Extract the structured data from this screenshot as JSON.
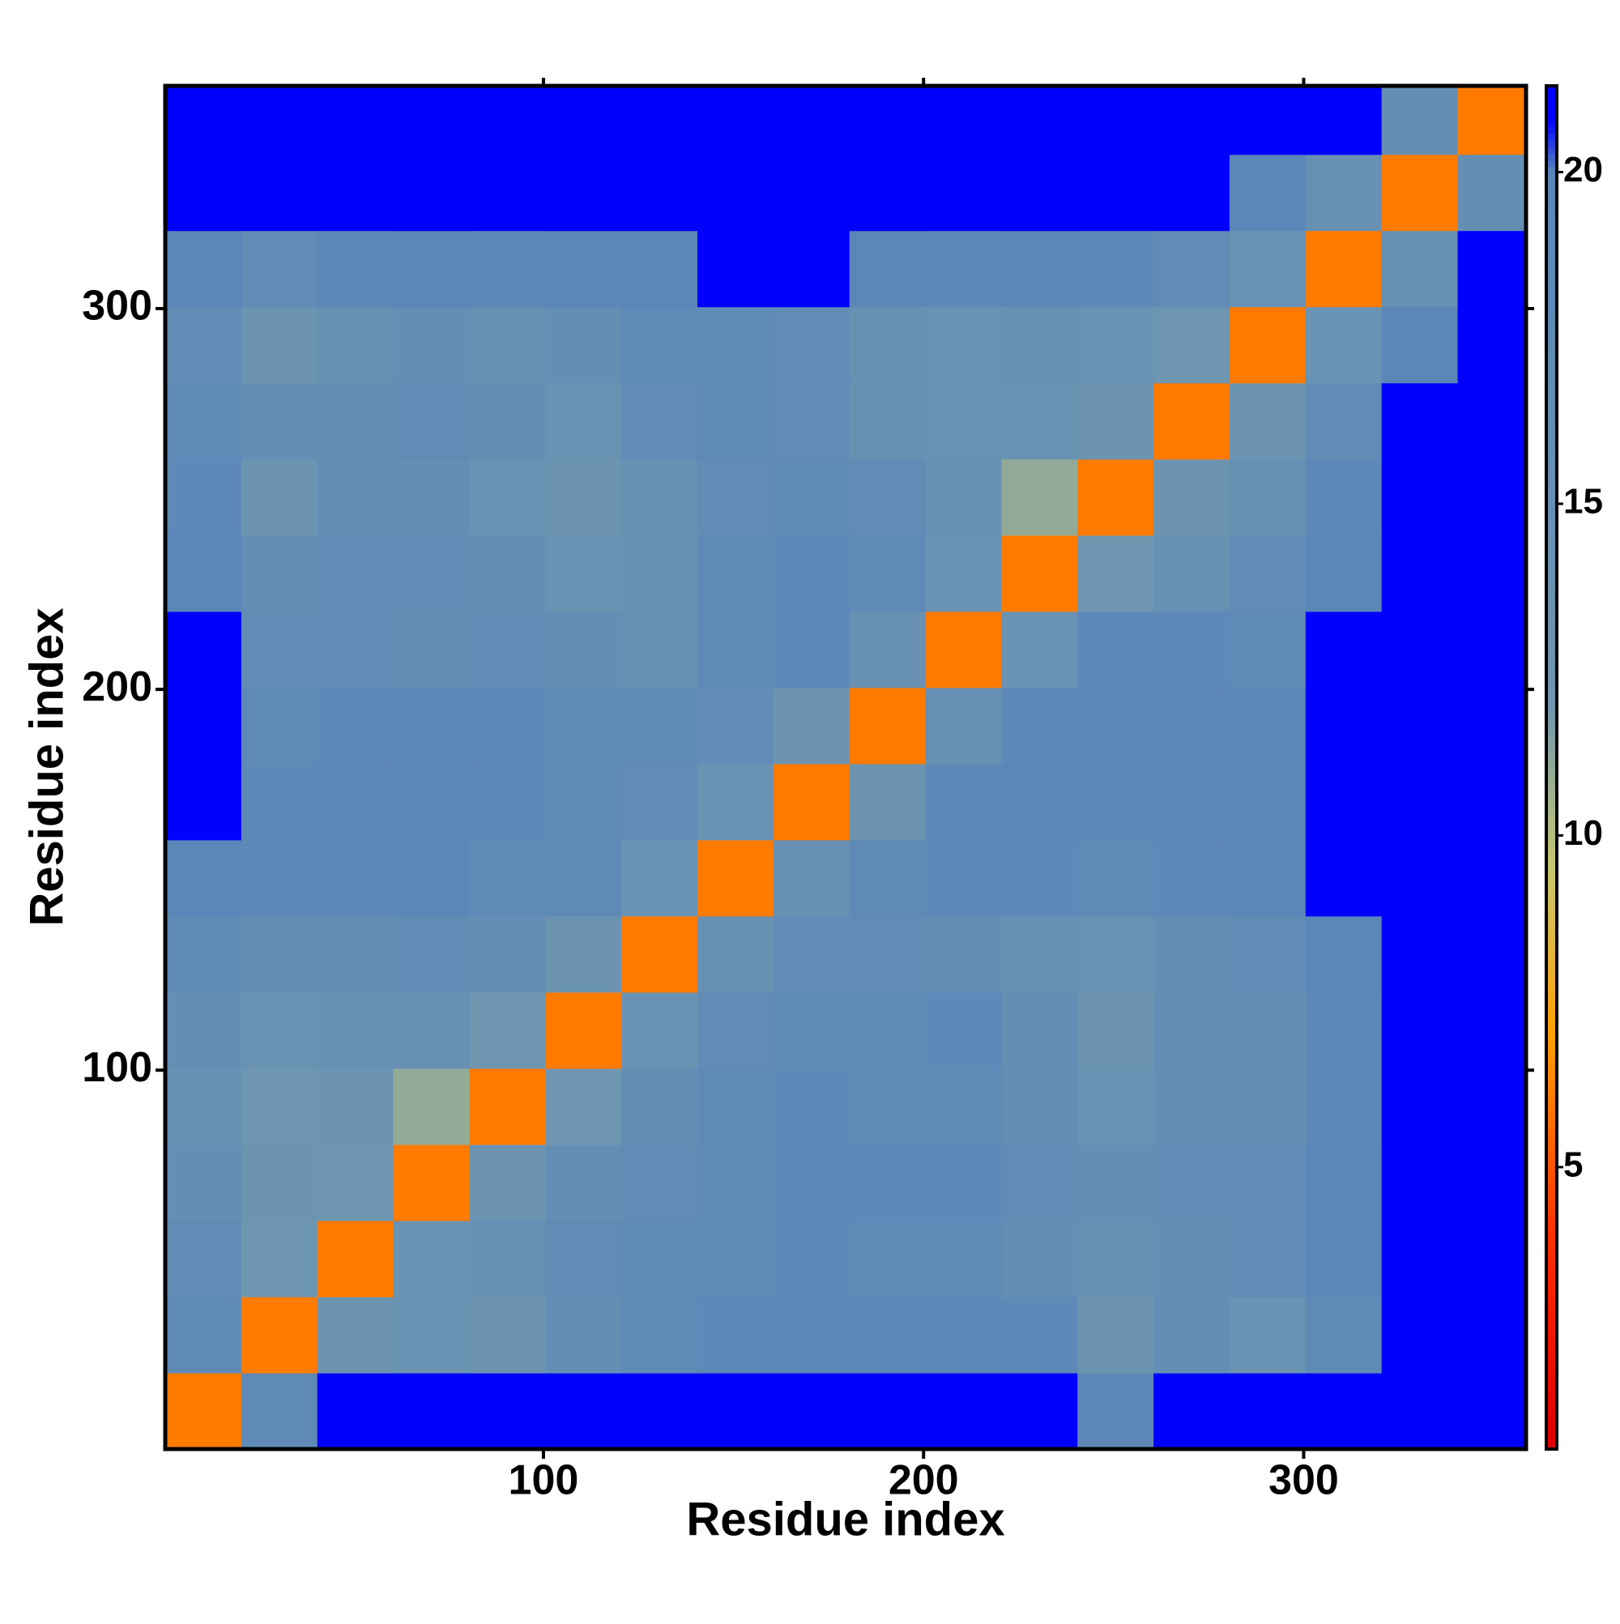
{
  "chart_data": {
    "type": "heatmap",
    "x_label": "Residue index",
    "y_label": "Residue index",
    "bins": [
      0.5,
      20.5,
      40.5,
      60.5,
      80.5,
      100.5,
      120.5,
      140.5,
      160.5,
      180.5,
      200.5,
      220.5,
      240.5,
      260.5,
      280.5,
      300.5,
      320.5,
      340.5,
      358.5
    ],
    "xlim": [
      0.5,
      358.5
    ],
    "ylim": [
      0.5,
      358.5
    ],
    "xticks": [
      100,
      200,
      300
    ],
    "yticks": [
      100,
      200,
      300
    ],
    "matrix": [
      [
        6,
        18,
        21,
        21,
        21,
        21,
        21,
        21,
        21,
        21,
        21,
        21,
        19,
        21,
        21,
        21,
        21,
        21
      ],
      [
        18,
        6,
        13,
        14,
        13,
        16,
        18,
        19,
        19,
        19,
        19,
        19,
        13,
        16,
        14,
        18,
        21,
        21
      ],
      [
        17,
        12,
        6,
        14,
        15,
        17,
        18,
        18,
        19,
        18,
        18,
        16,
        15,
        16,
        17,
        20,
        21,
        21
      ],
      [
        16,
        13,
        12,
        6,
        13,
        16,
        17,
        18,
        19,
        19,
        19,
        17,
        16,
        17,
        17,
        20,
        21,
        21
      ],
      [
        15,
        12,
        13,
        11,
        6,
        12,
        16,
        18,
        19,
        18,
        18,
        16,
        14,
        16,
        16,
        19,
        21,
        21
      ],
      [
        16,
        14,
        15,
        15,
        12,
        6,
        14,
        17,
        18,
        18,
        19,
        16,
        13,
        16,
        16,
        19,
        21,
        21
      ],
      [
        18,
        16,
        16,
        17,
        16,
        13,
        6,
        15,
        17,
        17,
        16,
        15,
        14,
        16,
        17,
        20,
        21,
        21
      ],
      [
        20,
        19,
        19,
        20,
        18,
        18,
        14,
        6,
        15,
        18,
        19,
        19,
        18,
        19,
        20,
        21,
        21,
        21
      ],
      [
        21,
        19,
        19,
        20,
        19,
        18,
        17,
        14,
        6,
        13,
        19,
        20,
        20,
        19,
        20,
        21,
        21,
        21
      ],
      [
        21,
        18,
        19,
        19,
        19,
        18,
        18,
        17,
        13,
        6,
        15,
        19,
        19,
        19,
        20,
        21,
        21,
        21
      ],
      [
        21,
        17,
        17,
        16,
        17,
        16,
        15,
        18,
        19,
        15,
        6,
        14,
        19,
        19,
        18,
        21,
        21,
        21
      ],
      [
        20,
        16,
        17,
        17,
        16,
        14,
        15,
        18,
        19,
        18,
        14,
        6,
        12,
        15,
        17,
        20,
        21,
        21
      ],
      [
        19,
        13,
        16,
        16,
        14,
        13,
        15,
        17,
        18,
        17,
        15,
        11,
        6,
        13,
        15,
        19,
        21,
        21
      ],
      [
        18,
        16,
        16,
        17,
        16,
        14,
        17,
        18,
        17,
        15,
        14,
        14,
        13,
        6,
        13,
        17,
        21,
        21
      ],
      [
        17,
        13,
        15,
        16,
        15,
        16,
        18,
        18,
        17,
        15,
        14,
        15,
        14,
        12,
        6,
        14,
        20,
        21
      ],
      [
        20,
        17,
        19,
        20,
        19,
        20,
        20,
        21,
        21,
        20,
        19,
        20,
        19,
        17,
        14,
        6,
        15,
        21
      ],
      [
        21,
        21,
        21,
        21,
        21,
        21,
        21,
        21,
        21,
        21,
        21,
        21,
        21,
        21,
        20,
        15,
        6,
        16
      ],
      [
        21,
        21,
        21,
        21,
        21,
        21,
        21,
        21,
        21,
        21,
        21,
        21,
        21,
        21,
        21,
        21,
        16,
        6
      ]
    ],
    "clim": [
      0.75,
      21.3
    ],
    "cticks": [
      5,
      10,
      15,
      20
    ],
    "colorscale": [
      {
        "value": 1,
        "color": "#e00000"
      },
      {
        "value": 4,
        "color": "#ff3000"
      },
      {
        "value": 7,
        "color": "#ffa000"
      },
      {
        "value": 9.5,
        "color": "#c8c870"
      },
      {
        "value": 12,
        "color": "#6f96b0"
      },
      {
        "value": 20,
        "color": "#5a86b8"
      },
      {
        "value": 20.8,
        "color": "#0000ff"
      },
      {
        "value": 21.5,
        "color": "#0000ff"
      }
    ]
  }
}
